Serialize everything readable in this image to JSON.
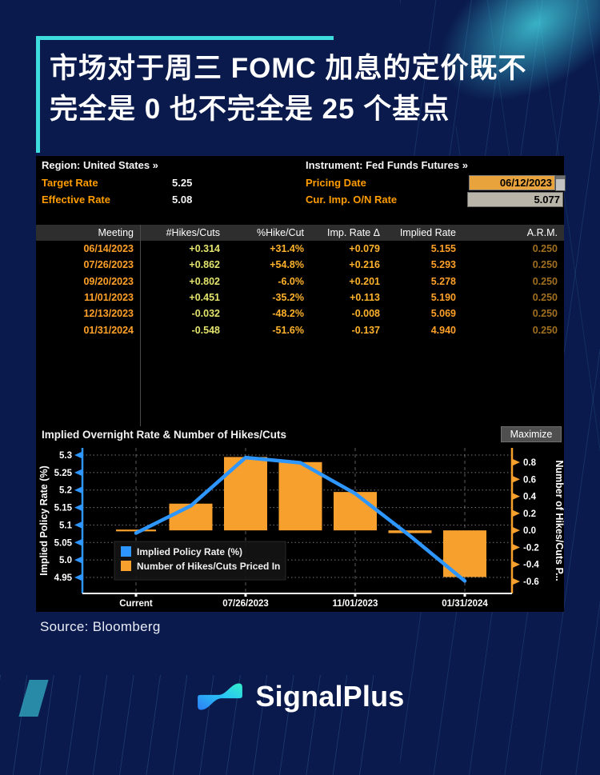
{
  "page": {
    "title_line1": "市场对于周三 FOMC 加息的定价既不",
    "title_line2": "完全是 0 也不完全是 25 个基点",
    "source_note": "Source: Bloomberg",
    "brand_name": "SignalPlus",
    "colors": {
      "background": "#0A1A4C",
      "accent_cyan": "#3EDCDC",
      "terminal_background": "#000000",
      "label_orange": "#FF9D00",
      "line_blue": "#2E96FF",
      "bar_orange": "#F7A02E"
    }
  },
  "terminal": {
    "region_label": "Region: United States »",
    "instrument_label": "Instrument: Fed Funds Futures »",
    "target_rate": {
      "label": "Target Rate",
      "value": "5.25"
    },
    "effective_rate": {
      "label": "Effective Rate",
      "value": "5.08"
    },
    "pricing_date": {
      "label": "Pricing Date",
      "value": "06/12/2023"
    },
    "cur_imp_on_rate": {
      "label": "Cur. Imp. O/N Rate",
      "value": "5.077"
    },
    "table": {
      "columns": [
        "Meeting",
        "#Hikes/Cuts",
        "%Hike/Cut",
        "Imp. Rate Δ",
        "Implied Rate",
        "A.R.M."
      ],
      "column_colors": [
        "#FFA128",
        "#E3E36E",
        "#FFB22B",
        "#FFB22B",
        "#FFA128",
        "#A06F1F"
      ],
      "rows": [
        [
          "06/14/2023",
          "+0.314",
          "+31.4%",
          "+0.079",
          "5.155",
          "0.250"
        ],
        [
          "07/26/2023",
          "+0.862",
          "+54.8%",
          "+0.216",
          "5.293",
          "0.250"
        ],
        [
          "09/20/2023",
          "+0.802",
          "-6.0%",
          "+0.201",
          "5.278",
          "0.250"
        ],
        [
          "11/01/2023",
          "+0.451",
          "-35.2%",
          "+0.113",
          "5.190",
          "0.250"
        ],
        [
          "12/13/2023",
          "-0.032",
          "-48.2%",
          "-0.008",
          "5.069",
          "0.250"
        ],
        [
          "01/31/2024",
          "-0.548",
          "-51.6%",
          "-0.137",
          "4.940",
          "0.250"
        ]
      ]
    },
    "chart_header": {
      "title": "Implied Overnight Rate & Number of Hikes/Cuts",
      "maximize_label": "Maximize"
    }
  },
  "chart_data": {
    "type": "bar+line",
    "title": "Implied Overnight Rate & Number of Hikes/Cuts",
    "categories": [
      "Current",
      "06/14/2023",
      "07/26/2023",
      "09/20/2023",
      "11/01/2023",
      "12/13/2023",
      "01/31/2024"
    ],
    "x_labels_shown": [
      "Current",
      "07/26/2023",
      "11/01/2023",
      "01/31/2024"
    ],
    "series": [
      {
        "name": "Implied Policy Rate (%)",
        "type": "line",
        "axis": "left",
        "color": "#2E96FF",
        "values": [
          5.077,
          5.155,
          5.293,
          5.278,
          5.19,
          5.069,
          4.94
        ]
      },
      {
        "name": "Number of Hikes/Cuts Priced In",
        "type": "bar",
        "axis": "right",
        "color": "#F7A02E",
        "values": [
          0.0,
          0.314,
          0.862,
          0.802,
          0.451,
          -0.032,
          -0.548
        ]
      }
    ],
    "left_axis": {
      "label": "Implied Policy Rate (%)",
      "ticks": [
        "5.3",
        "5.25",
        "5.2",
        "5.15",
        "5.1",
        "5.05",
        "5.0",
        "4.95"
      ],
      "range": [
        4.904,
        5.321
      ]
    },
    "right_axis": {
      "label": "Number of Hikes/Cuts P...",
      "ticks": [
        "0.8",
        "0.6",
        "0.4",
        "0.2",
        "0.0",
        "-0.2",
        "-0.4",
        "-0.6"
      ],
      "range": [
        -0.741,
        0.969
      ]
    },
    "legend": [
      "Implied Policy Rate (%)",
      "Number of Hikes/Cuts Priced In"
    ],
    "legend_position": "lower-left",
    "grid": true
  }
}
